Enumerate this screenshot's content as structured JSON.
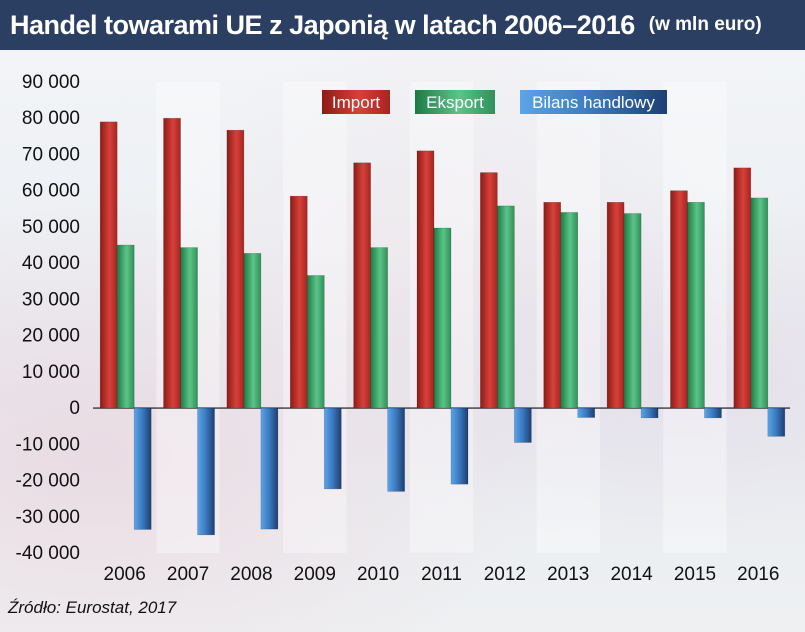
{
  "title": "Handel towarami UE z Japonią w latach 2006–2016",
  "subtitle": "(w mln euro)",
  "source": "Źródło: Eurostat, 2017",
  "colors": {
    "import": "#c9302c",
    "eksport": "#3da66a",
    "bilans": "#3f7fc4",
    "title_bg": "#2b3f63"
  },
  "chart_data": {
    "type": "bar",
    "title": "Handel towarami UE z Japonią w latach 2006–2016",
    "xlabel": "",
    "ylabel": "",
    "ylim": [
      -40000,
      90000
    ],
    "yticks": [
      90000,
      80000,
      70000,
      60000,
      50000,
      40000,
      30000,
      20000,
      10000,
      0,
      -10000,
      -20000,
      -30000,
      -40000
    ],
    "ytick_labels": [
      "90 000",
      "80 000",
      "70 000",
      "60 000",
      "50 000",
      "40 000",
      "30 000",
      "20 000",
      "10 000",
      "0",
      "-10 000",
      "-20 000",
      "-30 000",
      "-40 000"
    ],
    "categories": [
      "2006",
      "2007",
      "2008",
      "2009",
      "2010",
      "2011",
      "2012",
      "2013",
      "2014",
      "2015",
      "2016"
    ],
    "legend_position": "top",
    "series": [
      {
        "name": "Import",
        "values": [
          79000,
          80000,
          76700,
          58500,
          67700,
          71000,
          65000,
          56800,
          56800,
          60000,
          66300
        ]
      },
      {
        "name": "Eksport",
        "values": [
          45000,
          44300,
          42700,
          36600,
          44300,
          49700,
          55800,
          54000,
          53700,
          56800,
          58000
        ]
      },
      {
        "name": "Bilans handlowy",
        "values": [
          -33500,
          -35000,
          -33400,
          -22300,
          -23000,
          -21000,
          -9500,
          -2600,
          -2700,
          -2700,
          -7800
        ]
      }
    ]
  }
}
